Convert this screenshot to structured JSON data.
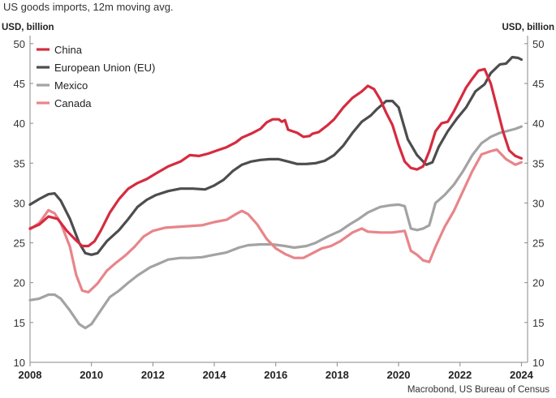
{
  "header": {
    "title": "US goods imports, 12m moving avg."
  },
  "footer": {
    "source": "Macrobond, US Bureau of Census"
  },
  "chart_data": {
    "type": "line",
    "title": "US goods imports, 12m moving avg.",
    "ylabel_left": "USD, billion",
    "ylabel_right": "USD, billion",
    "xlim": [
      2008,
      2024.2
    ],
    "ylim": [
      10,
      51
    ],
    "y_ticks": [
      10,
      15,
      20,
      25,
      30,
      35,
      40,
      45,
      50
    ],
    "x_ticks": [
      2008,
      2010,
      2012,
      2014,
      2016,
      2018,
      2020,
      2022,
      2024
    ],
    "grid": false,
    "legend_position": "top-left",
    "series": [
      {
        "name": "China",
        "color": "#d62b3f",
        "points": [
          [
            2008.0,
            26.8
          ],
          [
            2008.3,
            27.3
          ],
          [
            2008.6,
            28.3
          ],
          [
            2008.9,
            28.0
          ],
          [
            2009.2,
            26.5
          ],
          [
            2009.5,
            25.3
          ],
          [
            2009.7,
            24.6
          ],
          [
            2009.9,
            24.6
          ],
          [
            2010.1,
            25.2
          ],
          [
            2010.3,
            26.5
          ],
          [
            2010.6,
            28.8
          ],
          [
            2010.9,
            30.5
          ],
          [
            2011.2,
            31.8
          ],
          [
            2011.5,
            32.5
          ],
          [
            2011.8,
            33.0
          ],
          [
            2012.1,
            33.7
          ],
          [
            2012.5,
            34.6
          ],
          [
            2012.9,
            35.2
          ],
          [
            2013.2,
            36.0
          ],
          [
            2013.5,
            35.9
          ],
          [
            2013.8,
            36.2
          ],
          [
            2014.1,
            36.6
          ],
          [
            2014.4,
            37.0
          ],
          [
            2014.7,
            37.6
          ],
          [
            2014.9,
            38.2
          ],
          [
            2015.2,
            38.7
          ],
          [
            2015.5,
            39.3
          ],
          [
            2015.7,
            40.1
          ],
          [
            2015.9,
            40.5
          ],
          [
            2016.1,
            40.5
          ],
          [
            2016.2,
            40.2
          ],
          [
            2016.3,
            40.4
          ],
          [
            2016.4,
            39.2
          ],
          [
            2016.7,
            38.8
          ],
          [
            2016.9,
            38.3
          ],
          [
            2017.1,
            38.4
          ],
          [
            2017.2,
            38.7
          ],
          [
            2017.4,
            38.9
          ],
          [
            2017.7,
            39.8
          ],
          [
            2017.9,
            40.5
          ],
          [
            2018.2,
            42.0
          ],
          [
            2018.5,
            43.2
          ],
          [
            2018.8,
            44.0
          ],
          [
            2019.0,
            44.7
          ],
          [
            2019.2,
            44.3
          ],
          [
            2019.4,
            43.0
          ],
          [
            2019.6,
            41.3
          ],
          [
            2019.8,
            39.8
          ],
          [
            2020.0,
            37.3
          ],
          [
            2020.2,
            35.2
          ],
          [
            2020.4,
            34.4
          ],
          [
            2020.6,
            34.2
          ],
          [
            2020.8,
            34.6
          ],
          [
            2021.0,
            36.5
          ],
          [
            2021.2,
            39.0
          ],
          [
            2021.4,
            40.0
          ],
          [
            2021.6,
            40.2
          ],
          [
            2021.8,
            41.5
          ],
          [
            2022.0,
            43.0
          ],
          [
            2022.2,
            44.5
          ],
          [
            2022.4,
            45.6
          ],
          [
            2022.6,
            46.6
          ],
          [
            2022.8,
            46.8
          ],
          [
            2023.0,
            45.0
          ],
          [
            2023.2,
            42.0
          ],
          [
            2023.4,
            39.0
          ],
          [
            2023.6,
            36.6
          ],
          [
            2023.8,
            35.9
          ],
          [
            2024.0,
            35.6
          ]
        ]
      },
      {
        "name": "European Union (EU)",
        "color": "#4d4d4f",
        "points": [
          [
            2008.0,
            29.8
          ],
          [
            2008.3,
            30.5
          ],
          [
            2008.6,
            31.1
          ],
          [
            2008.8,
            31.2
          ],
          [
            2009.0,
            30.3
          ],
          [
            2009.3,
            28.0
          ],
          [
            2009.6,
            25.0
          ],
          [
            2009.8,
            23.7
          ],
          [
            2010.0,
            23.5
          ],
          [
            2010.2,
            23.7
          ],
          [
            2010.5,
            25.2
          ],
          [
            2010.9,
            26.6
          ],
          [
            2011.2,
            28.0
          ],
          [
            2011.5,
            29.5
          ],
          [
            2011.8,
            30.4
          ],
          [
            2012.1,
            31.0
          ],
          [
            2012.5,
            31.5
          ],
          [
            2012.9,
            31.8
          ],
          [
            2013.3,
            31.8
          ],
          [
            2013.7,
            31.7
          ],
          [
            2014.0,
            32.2
          ],
          [
            2014.3,
            32.9
          ],
          [
            2014.6,
            34.0
          ],
          [
            2014.9,
            34.8
          ],
          [
            2015.2,
            35.2
          ],
          [
            2015.5,
            35.4
          ],
          [
            2015.8,
            35.5
          ],
          [
            2016.1,
            35.5
          ],
          [
            2016.4,
            35.2
          ],
          [
            2016.7,
            34.9
          ],
          [
            2017.0,
            34.9
          ],
          [
            2017.3,
            35.0
          ],
          [
            2017.6,
            35.3
          ],
          [
            2017.9,
            36.0
          ],
          [
            2018.2,
            37.2
          ],
          [
            2018.5,
            38.8
          ],
          [
            2018.8,
            40.2
          ],
          [
            2019.1,
            41.0
          ],
          [
            2019.3,
            41.8
          ],
          [
            2019.6,
            42.8
          ],
          [
            2019.8,
            42.8
          ],
          [
            2020.0,
            42.0
          ],
          [
            2020.3,
            38.0
          ],
          [
            2020.6,
            36.0
          ],
          [
            2020.9,
            34.8
          ],
          [
            2021.1,
            35.1
          ],
          [
            2021.3,
            37.0
          ],
          [
            2021.6,
            39.0
          ],
          [
            2021.9,
            40.6
          ],
          [
            2022.2,
            42.0
          ],
          [
            2022.5,
            44.0
          ],
          [
            2022.8,
            44.9
          ],
          [
            2023.0,
            46.3
          ],
          [
            2023.3,
            47.4
          ],
          [
            2023.5,
            47.5
          ],
          [
            2023.7,
            48.3
          ],
          [
            2023.9,
            48.2
          ],
          [
            2024.0,
            48.0
          ]
        ]
      },
      {
        "name": "Mexico",
        "color": "#a3a3a3",
        "points": [
          [
            2008.0,
            17.8
          ],
          [
            2008.3,
            18.0
          ],
          [
            2008.6,
            18.5
          ],
          [
            2008.8,
            18.5
          ],
          [
            2009.0,
            18.0
          ],
          [
            2009.3,
            16.5
          ],
          [
            2009.6,
            14.8
          ],
          [
            2009.8,
            14.3
          ],
          [
            2010.0,
            14.8
          ],
          [
            2010.3,
            16.5
          ],
          [
            2010.6,
            18.2
          ],
          [
            2010.9,
            19.0
          ],
          [
            2011.2,
            20.0
          ],
          [
            2011.5,
            20.9
          ],
          [
            2011.9,
            21.9
          ],
          [
            2012.2,
            22.4
          ],
          [
            2012.5,
            22.9
          ],
          [
            2012.9,
            23.1
          ],
          [
            2013.2,
            23.1
          ],
          [
            2013.6,
            23.2
          ],
          [
            2014.0,
            23.5
          ],
          [
            2014.4,
            23.8
          ],
          [
            2014.8,
            24.4
          ],
          [
            2015.1,
            24.7
          ],
          [
            2015.5,
            24.8
          ],
          [
            2015.9,
            24.8
          ],
          [
            2016.3,
            24.6
          ],
          [
            2016.6,
            24.4
          ],
          [
            2017.0,
            24.6
          ],
          [
            2017.3,
            25.0
          ],
          [
            2017.7,
            25.8
          ],
          [
            2018.1,
            26.5
          ],
          [
            2018.4,
            27.3
          ],
          [
            2018.7,
            28.0
          ],
          [
            2019.0,
            28.8
          ],
          [
            2019.4,
            29.5
          ],
          [
            2019.7,
            29.7
          ],
          [
            2020.0,
            29.8
          ],
          [
            2020.2,
            29.6
          ],
          [
            2020.4,
            26.8
          ],
          [
            2020.6,
            26.6
          ],
          [
            2020.8,
            26.8
          ],
          [
            2021.0,
            27.2
          ],
          [
            2021.2,
            30.0
          ],
          [
            2021.5,
            31.0
          ],
          [
            2021.8,
            32.3
          ],
          [
            2022.1,
            34.0
          ],
          [
            2022.4,
            36.0
          ],
          [
            2022.7,
            37.5
          ],
          [
            2023.0,
            38.3
          ],
          [
            2023.3,
            38.8
          ],
          [
            2023.6,
            39.1
          ],
          [
            2023.8,
            39.3
          ],
          [
            2024.0,
            39.6
          ]
        ]
      },
      {
        "name": "Canada",
        "color": "#e8858a",
        "points": [
          [
            2008.0,
            26.7
          ],
          [
            2008.3,
            27.5
          ],
          [
            2008.6,
            29.1
          ],
          [
            2008.8,
            28.7
          ],
          [
            2009.0,
            27.5
          ],
          [
            2009.3,
            24.5
          ],
          [
            2009.5,
            21.0
          ],
          [
            2009.7,
            19.0
          ],
          [
            2009.9,
            18.8
          ],
          [
            2010.2,
            19.9
          ],
          [
            2010.5,
            21.5
          ],
          [
            2010.8,
            22.5
          ],
          [
            2011.1,
            23.4
          ],
          [
            2011.4,
            24.5
          ],
          [
            2011.7,
            25.8
          ],
          [
            2012.0,
            26.5
          ],
          [
            2012.4,
            26.9
          ],
          [
            2012.8,
            27.0
          ],
          [
            2013.2,
            27.1
          ],
          [
            2013.6,
            27.2
          ],
          [
            2014.0,
            27.6
          ],
          [
            2014.4,
            27.9
          ],
          [
            2014.7,
            28.6
          ],
          [
            2014.9,
            29.0
          ],
          [
            2015.1,
            28.6
          ],
          [
            2015.4,
            27.3
          ],
          [
            2015.7,
            25.5
          ],
          [
            2016.0,
            24.3
          ],
          [
            2016.3,
            23.6
          ],
          [
            2016.6,
            23.1
          ],
          [
            2016.9,
            23.1
          ],
          [
            2017.2,
            23.7
          ],
          [
            2017.5,
            24.3
          ],
          [
            2017.8,
            24.6
          ],
          [
            2018.1,
            25.2
          ],
          [
            2018.5,
            26.3
          ],
          [
            2018.8,
            26.8
          ],
          [
            2019.0,
            26.4
          ],
          [
            2019.4,
            26.3
          ],
          [
            2019.8,
            26.3
          ],
          [
            2020.0,
            26.4
          ],
          [
            2020.2,
            26.5
          ],
          [
            2020.4,
            24.0
          ],
          [
            2020.6,
            23.5
          ],
          [
            2020.8,
            22.8
          ],
          [
            2021.0,
            22.6
          ],
          [
            2021.2,
            24.5
          ],
          [
            2021.5,
            27.0
          ],
          [
            2021.8,
            29.0
          ],
          [
            2022.1,
            31.5
          ],
          [
            2022.4,
            34.0
          ],
          [
            2022.7,
            36.1
          ],
          [
            2023.0,
            36.5
          ],
          [
            2023.2,
            36.7
          ],
          [
            2023.5,
            35.5
          ],
          [
            2023.8,
            34.8
          ],
          [
            2024.0,
            35.1
          ]
        ]
      }
    ]
  }
}
